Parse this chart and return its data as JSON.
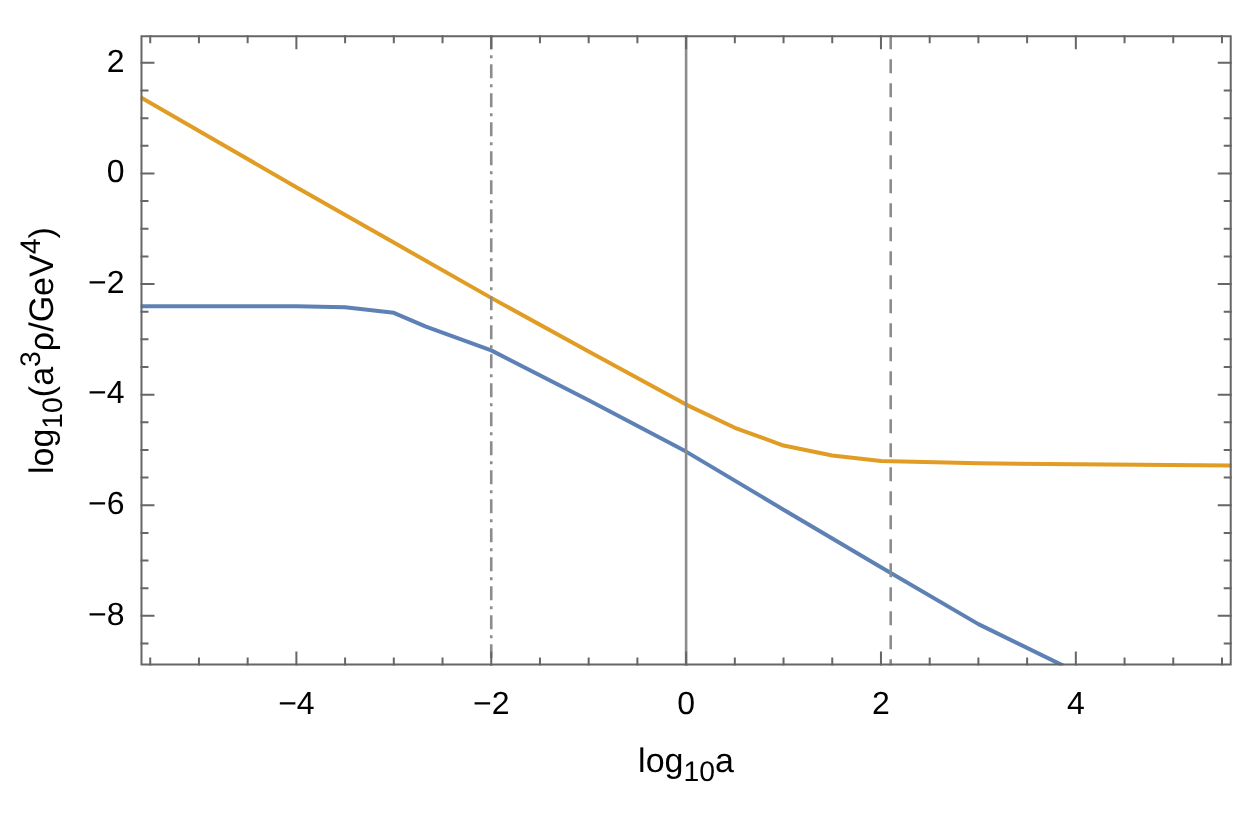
{
  "chart_data": {
    "type": "line",
    "xlabel": "log$_{10}$a",
    "ylabel": "log$_{10}$(a$^{3}$ρ/GeV$^{4}$)",
    "xlim": [
      -5.6,
      5.6
    ],
    "ylim": [
      -8.9,
      2.5
    ],
    "xticks": [
      {
        "value": -5.5,
        "label": null
      },
      {
        "value": -5,
        "label": null
      },
      {
        "value": -4.5,
        "label": null
      },
      -4,
      {
        "value": -3.5,
        "label": null
      },
      {
        "value": -3,
        "label": null
      },
      {
        "value": -2.5,
        "label": null
      },
      -2,
      {
        "value": -1.5,
        "label": null
      },
      {
        "value": -1,
        "label": null
      },
      {
        "value": -0.5,
        "label": null
      },
      0,
      {
        "value": 0.5,
        "label": null
      },
      {
        "value": 1,
        "label": null
      },
      {
        "value": 1.5,
        "label": null
      },
      2,
      {
        "value": 2.5,
        "label": null
      },
      {
        "value": 3,
        "label": null
      },
      {
        "value": 3.5,
        "label": null
      },
      4,
      {
        "value": 4.5,
        "label": null
      },
      {
        "value": 5,
        "label": null
      },
      {
        "value": 5.5,
        "label": null
      }
    ],
    "yticks": [
      {
        "value": -8.5,
        "label": null
      },
      -8,
      {
        "value": -7.5,
        "label": null
      },
      {
        "value": -7,
        "label": null
      },
      {
        "value": -6.5,
        "label": null
      },
      -6,
      {
        "value": -5.5,
        "label": null
      },
      {
        "value": -5,
        "label": null
      },
      {
        "value": -4.5,
        "label": null
      },
      -4,
      {
        "value": -3.5,
        "label": null
      },
      {
        "value": -3,
        "label": null
      },
      {
        "value": -2.5,
        "label": null
      },
      -2,
      {
        "value": -1.5,
        "label": null
      },
      {
        "value": -1,
        "label": null
      },
      {
        "value": -0.5,
        "label": null
      },
      0,
      {
        "value": 0.5,
        "label": null
      },
      {
        "value": 1,
        "label": null
      },
      {
        "value": 1.5,
        "label": null
      },
      2
    ],
    "grid": false,
    "legend": false,
    "marker": "none",
    "line_style": "solid",
    "series": [
      {
        "color": "#e19c24",
        "x": [
          -5.6,
          -4,
          -3,
          -2,
          -1,
          -0.5,
          0,
          0.5,
          1,
          1.5,
          2,
          3,
          4,
          5.6
        ],
        "values": [
          1.38,
          -0.25,
          -1.25,
          -2.25,
          -3.22,
          -3.7,
          -4.18,
          -4.6,
          -4.92,
          -5.1,
          -5.2,
          -5.24,
          -5.26,
          -5.28
        ]
      },
      {
        "color": "#5e81b5",
        "x": [
          -5.6,
          -4,
          -3.5,
          -3,
          -2.67,
          -2,
          -1,
          0,
          1,
          2,
          3,
          3.87
        ],
        "values": [
          -2.4,
          -2.4,
          -2.42,
          -2.52,
          -2.77,
          -3.2,
          -4.1,
          -5.03,
          -6.08,
          -7.12,
          -8.15,
          -8.9
        ]
      }
    ],
    "ref_lines": [
      {
        "axis": "x",
        "value": -2,
        "color": "#8c8c8c",
        "line_style": "dashdot"
      },
      {
        "axis": "x",
        "value": 0,
        "color": "#8c8c8c",
        "line_style": "solid"
      },
      {
        "axis": "x",
        "value": 2.1,
        "color": "#8c8c8c",
        "line_style": "dashed"
      }
    ]
  }
}
